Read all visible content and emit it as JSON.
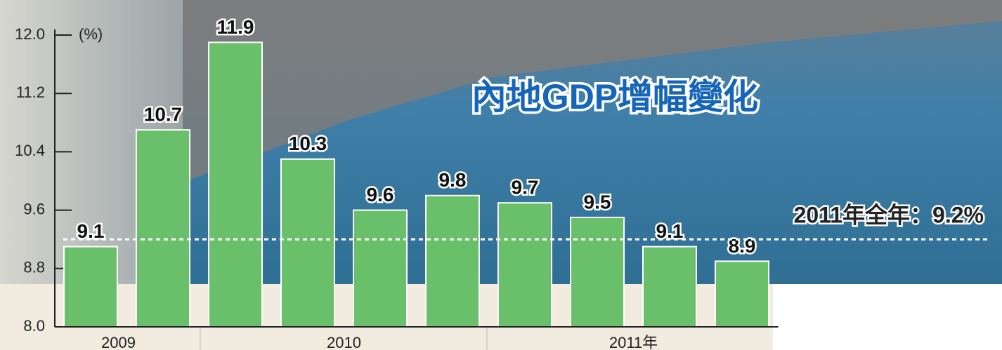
{
  "chart_data": {
    "type": "bar",
    "title": "內地GDP增幅變化",
    "y_unit": "(%)",
    "categories": [
      "2009",
      null,
      "2010",
      null,
      null,
      null,
      "2011年",
      null,
      null,
      null
    ],
    "values": [
      9.1,
      10.7,
      11.9,
      10.3,
      9.6,
      9.8,
      9.7,
      9.5,
      9.1,
      8.9
    ],
    "color": "#6abf6a",
    "ylim": [
      8.0,
      12.0
    ],
    "yticks": [
      {
        "value": 8.0,
        "label": "8.0"
      },
      {
        "value": 8.8,
        "label": "8.8"
      },
      {
        "value": 9.6,
        "label": "9.6"
      },
      {
        "value": 10.4,
        "label": "10.4"
      },
      {
        "value": 11.2,
        "label": "11.2"
      },
      {
        "value": 12.0,
        "label": "12.0"
      }
    ],
    "reference_line": {
      "value": 9.2,
      "label": "2011年全年：9.2%"
    }
  }
}
